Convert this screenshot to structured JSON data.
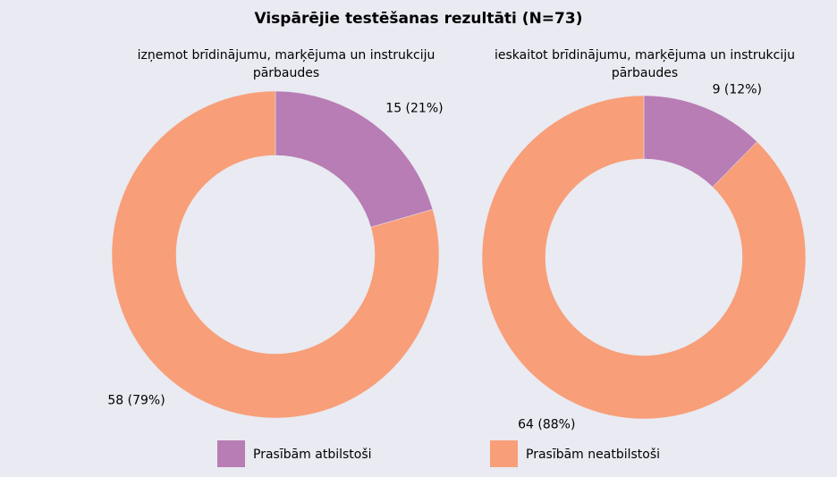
{
  "title": "Vispārējie testēšanas rezultāti (N=73)",
  "chart_data": [
    {
      "type": "pie",
      "donut": true,
      "subtitle": "izņemot brīdinājumu, marķējuma un instrukciju pārbaudes",
      "categories": [
        "Prasībām atbilstoši",
        "Prasībām neatbilstoši"
      ],
      "values": [
        15,
        58
      ],
      "value_labels": [
        "15 (21%)",
        "58 (79%)"
      ],
      "colors": [
        "#b87db4",
        "#f89e78"
      ]
    },
    {
      "type": "pie",
      "donut": true,
      "subtitle": "ieskaitot brīdinājumu, marķējuma un instrukciju pārbaudes",
      "categories": [
        "Prasībām atbilstoši",
        "Prasībām neatbilstoši"
      ],
      "values": [
        9,
        64
      ],
      "value_labels": [
        "9 (12%)",
        "64 (88%)"
      ],
      "colors": [
        "#b87db4",
        "#f89e78"
      ]
    }
  ]
}
